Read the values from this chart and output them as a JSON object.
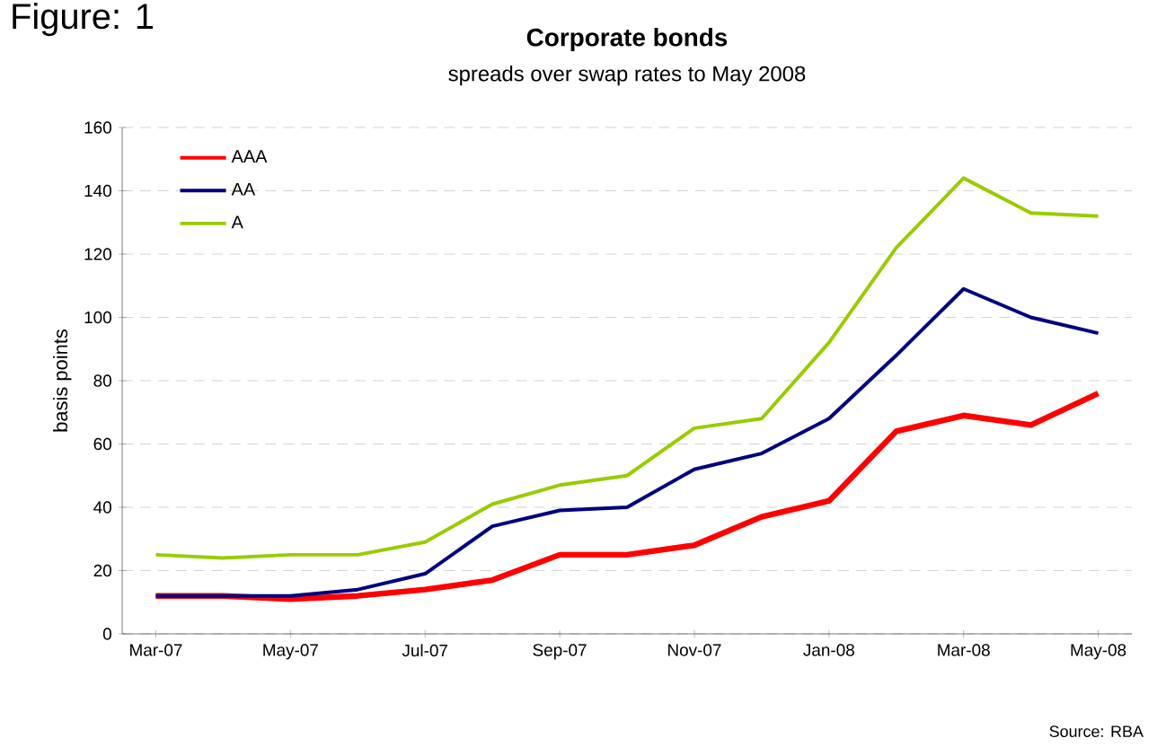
{
  "chart_data": {
    "type": "line",
    "title": "Corporate bonds",
    "subtitle": "spreads over swap rates to May 2008",
    "ylabel": "basis points",
    "annotations": [
      "Figure: 1",
      "Source: RBA"
    ],
    "categories": [
      "Mar-07",
      null,
      "May-07",
      null,
      "Jul-07",
      null,
      "Sep-07",
      null,
      "Nov-07",
      null,
      "Jan-08",
      null,
      "Mar-08",
      null,
      "May-08"
    ],
    "series": [
      {
        "name": "AAA",
        "color": "#ff0000",
        "values": [
          12,
          12,
          11,
          12,
          14,
          17,
          25,
          25,
          28,
          37,
          42,
          64,
          69,
          66,
          76
        ]
      },
      {
        "name": "AA",
        "color": "#000080",
        "values": [
          12,
          12,
          12,
          14,
          19,
          34,
          39,
          40,
          52,
          57,
          68,
          88,
          109,
          100,
          95
        ]
      },
      {
        "name": "A",
        "color": "#99cc00",
        "values": [
          25,
          24,
          25,
          25,
          29,
          41,
          47,
          50,
          65,
          68,
          92,
          122,
          144,
          133,
          132
        ]
      }
    ],
    "ylim": [
      0,
      160
    ],
    "yticks": [
      0,
      20,
      40,
      60,
      80,
      100,
      120,
      140,
      160
    ],
    "grid": "y",
    "legend": "top left",
    "marker": "none",
    "line_style": "solid"
  }
}
